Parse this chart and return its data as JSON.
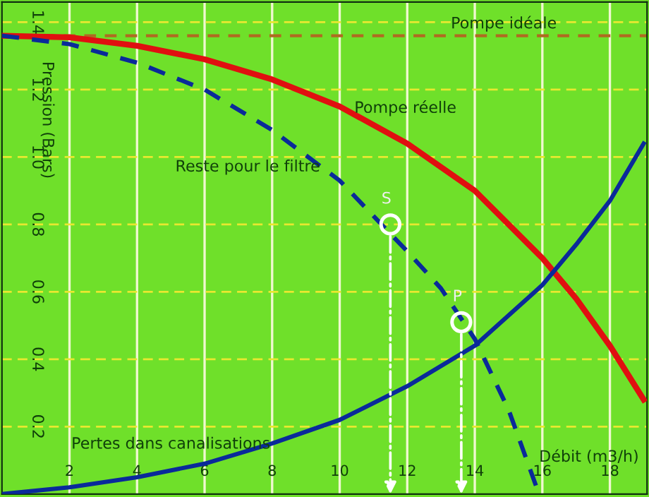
{
  "chart_data": {
    "type": "line",
    "xlabel": "Débit (m3/h)",
    "ylabel": "Pression (Bars)",
    "xlim": [
      0,
      19.1
    ],
    "ylim": [
      0,
      1.46
    ],
    "xticks": [
      2,
      4,
      6,
      8,
      10,
      12,
      14,
      16,
      18
    ],
    "yticks": [
      0.2,
      0.4,
      0.6,
      0.8,
      {
        "value": 1.0,
        "label": "1.0"
      },
      1.2,
      1.4
    ],
    "grid": true,
    "line_style": "solid",
    "marker": "none",
    "series": [
      {
        "color": "#e01010",
        "x": [
          0,
          2,
          4,
          6,
          8,
          10,
          12,
          14,
          16,
          17,
          18,
          19
        ],
        "values": [
          1.36,
          1.355,
          1.33,
          1.29,
          1.23,
          1.15,
          1.04,
          0.9,
          0.7,
          0.58,
          0.44,
          0.28
        ]
      },
      {
        "color": "#0a2a9a",
        "x": [
          0,
          2,
          4,
          6,
          8,
          10,
          12,
          14,
          16,
          17,
          18,
          19
        ],
        "values": [
          0,
          0.02,
          0.05,
          0.09,
          0.15,
          0.22,
          0.32,
          0.44,
          0.62,
          0.74,
          0.87,
          1.04
        ]
      },
      {
        "color": "#0a2a9a",
        "line_style": "dashed",
        "x": [
          0,
          2,
          4,
          6,
          8,
          10,
          12,
          13,
          14,
          15,
          15.9
        ],
        "values": [
          1.36,
          1.335,
          1.28,
          1.2,
          1.08,
          0.93,
          0.72,
          0.61,
          0.46,
          0.25,
          0
        ]
      },
      {
        "type": "scatter",
        "color": "#ffffff",
        "marker": "circle",
        "x": [
          11.5,
          13.6
        ],
        "values": [
          0.8,
          0.51
        ]
      }
    ],
    "ref_lines": [
      {
        "axis": "y",
        "value": 1.36,
        "label": "Pompe idéale",
        "color": "#b06a20",
        "line_style": "dashed"
      }
    ],
    "annotations": [
      {
        "text": "S",
        "x": 11.5,
        "y": 0.8
      },
      {
        "text": "P",
        "x": 13.6,
        "y": 0.51
      },
      {
        "text": "Pompe réelle",
        "x": 12,
        "y": 1.04
      },
      {
        "text": "Reste pour le filtre",
        "x": 10,
        "y": 0.93
      },
      {
        "text": "Pertes dans canalisations",
        "x": 6,
        "y": 0.09
      }
    ]
  }
}
